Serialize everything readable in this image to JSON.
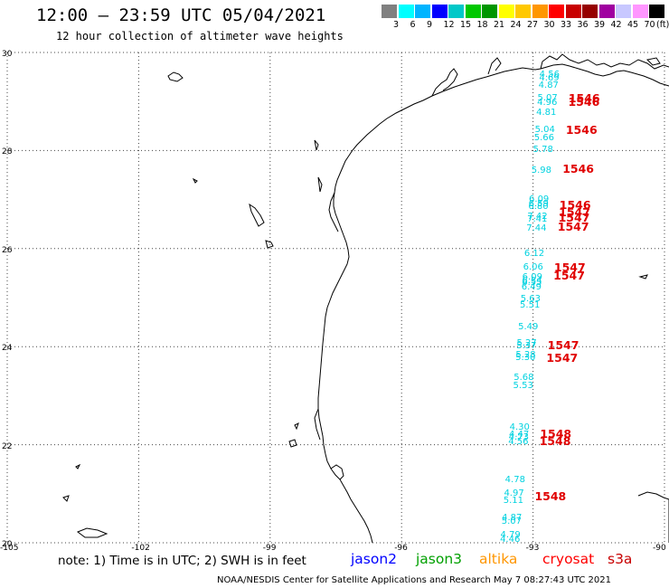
{
  "header": {
    "title": "12:00 – 23:59 UTC 05/04/2021",
    "subtitle": "12 hour collection of altimeter wave heights"
  },
  "colorbar": {
    "unit": "(ft)",
    "colors": [
      "#808080",
      "#00ffff",
      "#00b4ff",
      "#0000ff",
      "#00c8c8",
      "#00c800",
      "#009600",
      "#ffff00",
      "#ffc800",
      "#ff9600",
      "#ff0000",
      "#c80000",
      "#960000",
      "#a000a0",
      "#c8c8ff",
      "#ff96ff",
      "#000000"
    ],
    "labels": [
      "3",
      "6",
      "9",
      "12",
      "15",
      "18",
      "21",
      "24",
      "27",
      "30",
      "33",
      "36",
      "39",
      "42",
      "45",
      "70"
    ]
  },
  "axes": {
    "lat_labels": [
      "30",
      "28",
      "26",
      "24",
      "22",
      "20"
    ],
    "lon_labels": [
      "-105",
      "-102",
      "-99",
      "-96",
      "-93",
      "-90"
    ]
  },
  "swh_values": [
    {
      "t": "4.56",
      "lat": 29.53
    },
    {
      "t": "4.69",
      "lat": 29.47
    },
    {
      "t": "4.87",
      "lat": 29.31
    },
    {
      "t": "5.07",
      "lat": 29.05
    },
    {
      "t": "4.96",
      "lat": 28.97
    },
    {
      "t": "4.81",
      "lat": 28.76
    },
    {
      "t": "5.04",
      "lat": 28.42
    },
    {
      "t": "5.66",
      "lat": 28.24
    },
    {
      "t": "5.78",
      "lat": 28.0
    },
    {
      "t": "5.98",
      "lat": 27.58
    },
    {
      "t": "6.09",
      "lat": 27.0
    },
    {
      "t": "6.59",
      "lat": 26.9
    },
    {
      "t": "6.80",
      "lat": 26.85
    },
    {
      "t": "7.42",
      "lat": 26.64
    },
    {
      "t": "7.41",
      "lat": 26.58
    },
    {
      "t": "7.44",
      "lat": 26.4
    },
    {
      "t": "6.12",
      "lat": 25.88
    },
    {
      "t": "6.06",
      "lat": 25.6
    },
    {
      "t": "6.09",
      "lat": 25.4
    },
    {
      "t": "6.34",
      "lat": 25.34
    },
    {
      "t": "6.55",
      "lat": 25.3
    },
    {
      "t": "6.49",
      "lat": 25.2
    },
    {
      "t": "5.63",
      "lat": 24.97
    },
    {
      "t": "5.51",
      "lat": 24.83
    },
    {
      "t": "5.49",
      "lat": 24.4
    },
    {
      "t": "5.27",
      "lat": 24.06
    },
    {
      "t": "5.37",
      "lat": 24.0
    },
    {
      "t": "5.28",
      "lat": 23.82
    },
    {
      "t": "5.30",
      "lat": 23.76
    },
    {
      "t": "5.68",
      "lat": 23.35
    },
    {
      "t": "5.53",
      "lat": 23.2
    },
    {
      "t": "4.30",
      "lat": 22.35
    },
    {
      "t": "4.47",
      "lat": 22.2
    },
    {
      "t": "4.73",
      "lat": 22.14
    },
    {
      "t": "4.56",
      "lat": 22.05
    },
    {
      "t": "4.78",
      "lat": 21.27
    },
    {
      "t": "4.97",
      "lat": 21.0
    },
    {
      "t": "5.11",
      "lat": 20.85
    },
    {
      "t": "4.87",
      "lat": 20.5
    },
    {
      "t": "5.07",
      "lat": 20.42
    },
    {
      "t": "4.79",
      "lat": 20.15
    },
    {
      "t": "4.46",
      "lat": 20.05
    }
  ],
  "passes": [
    {
      "t": "1546",
      "lat": 29.06
    },
    {
      "t": "1546",
      "lat": 28.99
    },
    {
      "t": "1546",
      "lat": 28.42
    },
    {
      "t": "1546",
      "lat": 27.62
    },
    {
      "t": "1546",
      "lat": 26.88
    },
    {
      "t": "1547",
      "lat": 26.74
    },
    {
      "t": "1547",
      "lat": 26.62
    },
    {
      "t": "1547",
      "lat": 26.44
    },
    {
      "t": "1547",
      "lat": 25.6
    },
    {
      "t": "1547",
      "lat": 25.44
    },
    {
      "t": "1547",
      "lat": 24.02
    },
    {
      "t": "1547",
      "lat": 23.76
    },
    {
      "t": "1548",
      "lat": 22.22
    },
    {
      "t": "1548",
      "lat": 22.06
    },
    {
      "t": "1548",
      "lat": 20.94
    }
  ],
  "footer": {
    "note": "note:  1) Time is in UTC;  2) SWH is in feet",
    "legend": [
      {
        "name": "jason2",
        "color": "#0000ff"
      },
      {
        "name": "jason3",
        "color": "#00a000"
      },
      {
        "name": "altika",
        "color": "#ff9600"
      },
      {
        "name": "cryosat",
        "color": "#ff0000"
      },
      {
        "name": "s3a",
        "color": "#c80000"
      }
    ],
    "credit": "NOAA/NESDIS Center for Satellite Applications and Research    May  7 08:27:43 UTC 2021"
  }
}
